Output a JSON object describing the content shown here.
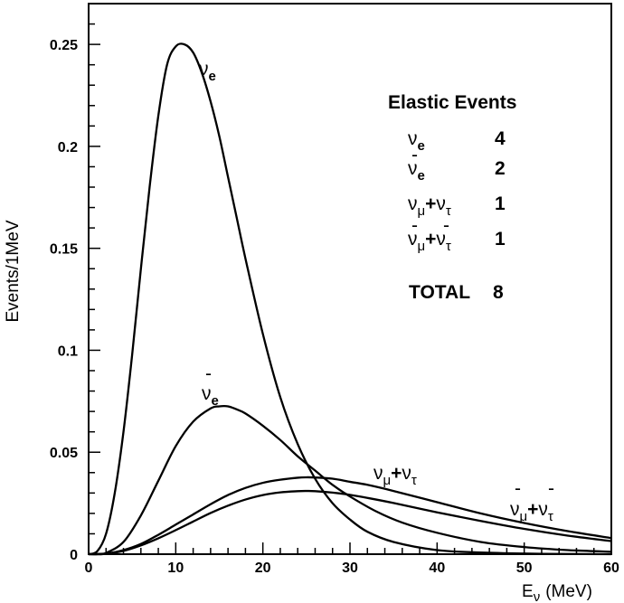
{
  "chart_data": {
    "type": "line",
    "xlabel": "E",
    "xlabel_sub": "ν",
    "xlabel_unit": "(MeV)",
    "ylabel": "Events/1MeV",
    "xlim": [
      0,
      60
    ],
    "ylim": [
      0,
      0.27
    ],
    "x_ticks": [
      "0",
      "10",
      "20",
      "30",
      "40",
      "50",
      "60"
    ],
    "y_ticks": [
      "0",
      "0.05",
      "0.1",
      "0.15",
      "0.2",
      "0.25"
    ],
    "x_tick_values": [
      0,
      10,
      20,
      30,
      40,
      50,
      60
    ],
    "y_tick_values": [
      0,
      0.05,
      0.1,
      0.15,
      0.2,
      0.25
    ],
    "grid": false,
    "series": [
      {
        "label": "νe",
        "x": [
          0,
          1,
          2,
          3,
          4,
          5,
          6,
          7,
          8,
          9,
          10,
          11,
          12,
          13,
          14,
          15,
          16,
          17,
          18,
          20,
          22,
          24,
          26,
          28,
          30,
          32,
          35,
          40,
          45,
          50,
          55,
          60
        ],
        "y": [
          0,
          0.0015,
          0.01,
          0.03,
          0.06,
          0.098,
          0.14,
          0.18,
          0.215,
          0.24,
          0.249,
          0.25,
          0.246,
          0.236,
          0.222,
          0.205,
          0.185,
          0.165,
          0.145,
          0.108,
          0.077,
          0.054,
          0.037,
          0.025,
          0.017,
          0.011,
          0.006,
          0.002,
          0.0008,
          0.0003,
          0.0001,
          0
        ]
      },
      {
        "label": "ν̄e",
        "x": [
          0,
          1,
          2,
          4,
          6,
          8,
          10,
          12,
          14,
          15,
          16,
          17,
          18,
          20,
          22,
          24,
          26,
          28,
          30,
          33,
          36,
          40,
          45,
          50,
          55,
          60
        ],
        "y": [
          0,
          0,
          0.0006,
          0.006,
          0.019,
          0.036,
          0.053,
          0.065,
          0.0715,
          0.0725,
          0.0725,
          0.071,
          0.069,
          0.063,
          0.056,
          0.048,
          0.041,
          0.034,
          0.0283,
          0.021,
          0.0155,
          0.0105,
          0.006,
          0.0035,
          0.002,
          0.0012
        ]
      },
      {
        "label": "νμ+ντ",
        "x": [
          0,
          2,
          4,
          6,
          8,
          10,
          12,
          14,
          16,
          18,
          20,
          22,
          24,
          25,
          26,
          28,
          30,
          32,
          35,
          40,
          45,
          50,
          55,
          60
        ],
        "y": [
          0,
          0.0003,
          0.002,
          0.005,
          0.0095,
          0.0145,
          0.0195,
          0.0245,
          0.029,
          0.0325,
          0.035,
          0.0365,
          0.0375,
          0.0377,
          0.0376,
          0.037,
          0.0355,
          0.034,
          0.031,
          0.0255,
          0.02,
          0.0153,
          0.0113,
          0.0079
        ]
      },
      {
        "label": "ν̄μ+ν̄τ",
        "x": [
          0,
          2,
          4,
          6,
          8,
          10,
          12,
          14,
          16,
          18,
          20,
          22,
          24,
          25,
          26,
          28,
          30,
          32,
          35,
          40,
          45,
          50,
          55,
          60
        ],
        "y": [
          0,
          0.0002,
          0.0016,
          0.0043,
          0.0078,
          0.0118,
          0.016,
          0.0202,
          0.0238,
          0.0268,
          0.029,
          0.0303,
          0.0309,
          0.031,
          0.0309,
          0.0302,
          0.0291,
          0.0276,
          0.0251,
          0.0205,
          0.0163,
          0.0124,
          0.0091,
          0.0064
        ]
      }
    ]
  },
  "curve_labels": {
    "nue": {
      "base": "ν",
      "sub": "e"
    },
    "nuebar": {
      "bar": "-",
      "base": "ν",
      "sub": "e"
    },
    "numu": {
      "base1": "ν",
      "sub1": "μ",
      "plus": "+",
      "base2": "ν",
      "sub2": "τ"
    },
    "numubar": {
      "bar1": "-",
      "base1": "ν",
      "sub1": "μ",
      "plus": "+",
      "bar2": "-",
      "base2": "ν",
      "sub2": "τ"
    }
  },
  "legend": {
    "title": "Elastic Events",
    "rows": [
      {
        "nu": "ν",
        "sub": "e",
        "count": "4"
      },
      {
        "bar": "-",
        "nu": "ν",
        "sub": "e",
        "count": "2"
      },
      {
        "nu1": "ν",
        "sub1": "μ",
        "plus": "+",
        "nu2": "ν",
        "sub2": "τ",
        "count": "1"
      },
      {
        "bar1": "-",
        "bar2": "-",
        "nu1": "ν",
        "sub1": "μ",
        "plus": "+",
        "nu2": "ν",
        "sub2": "τ",
        "count": "1"
      }
    ],
    "total_label": "TOTAL",
    "total_value": "8"
  }
}
